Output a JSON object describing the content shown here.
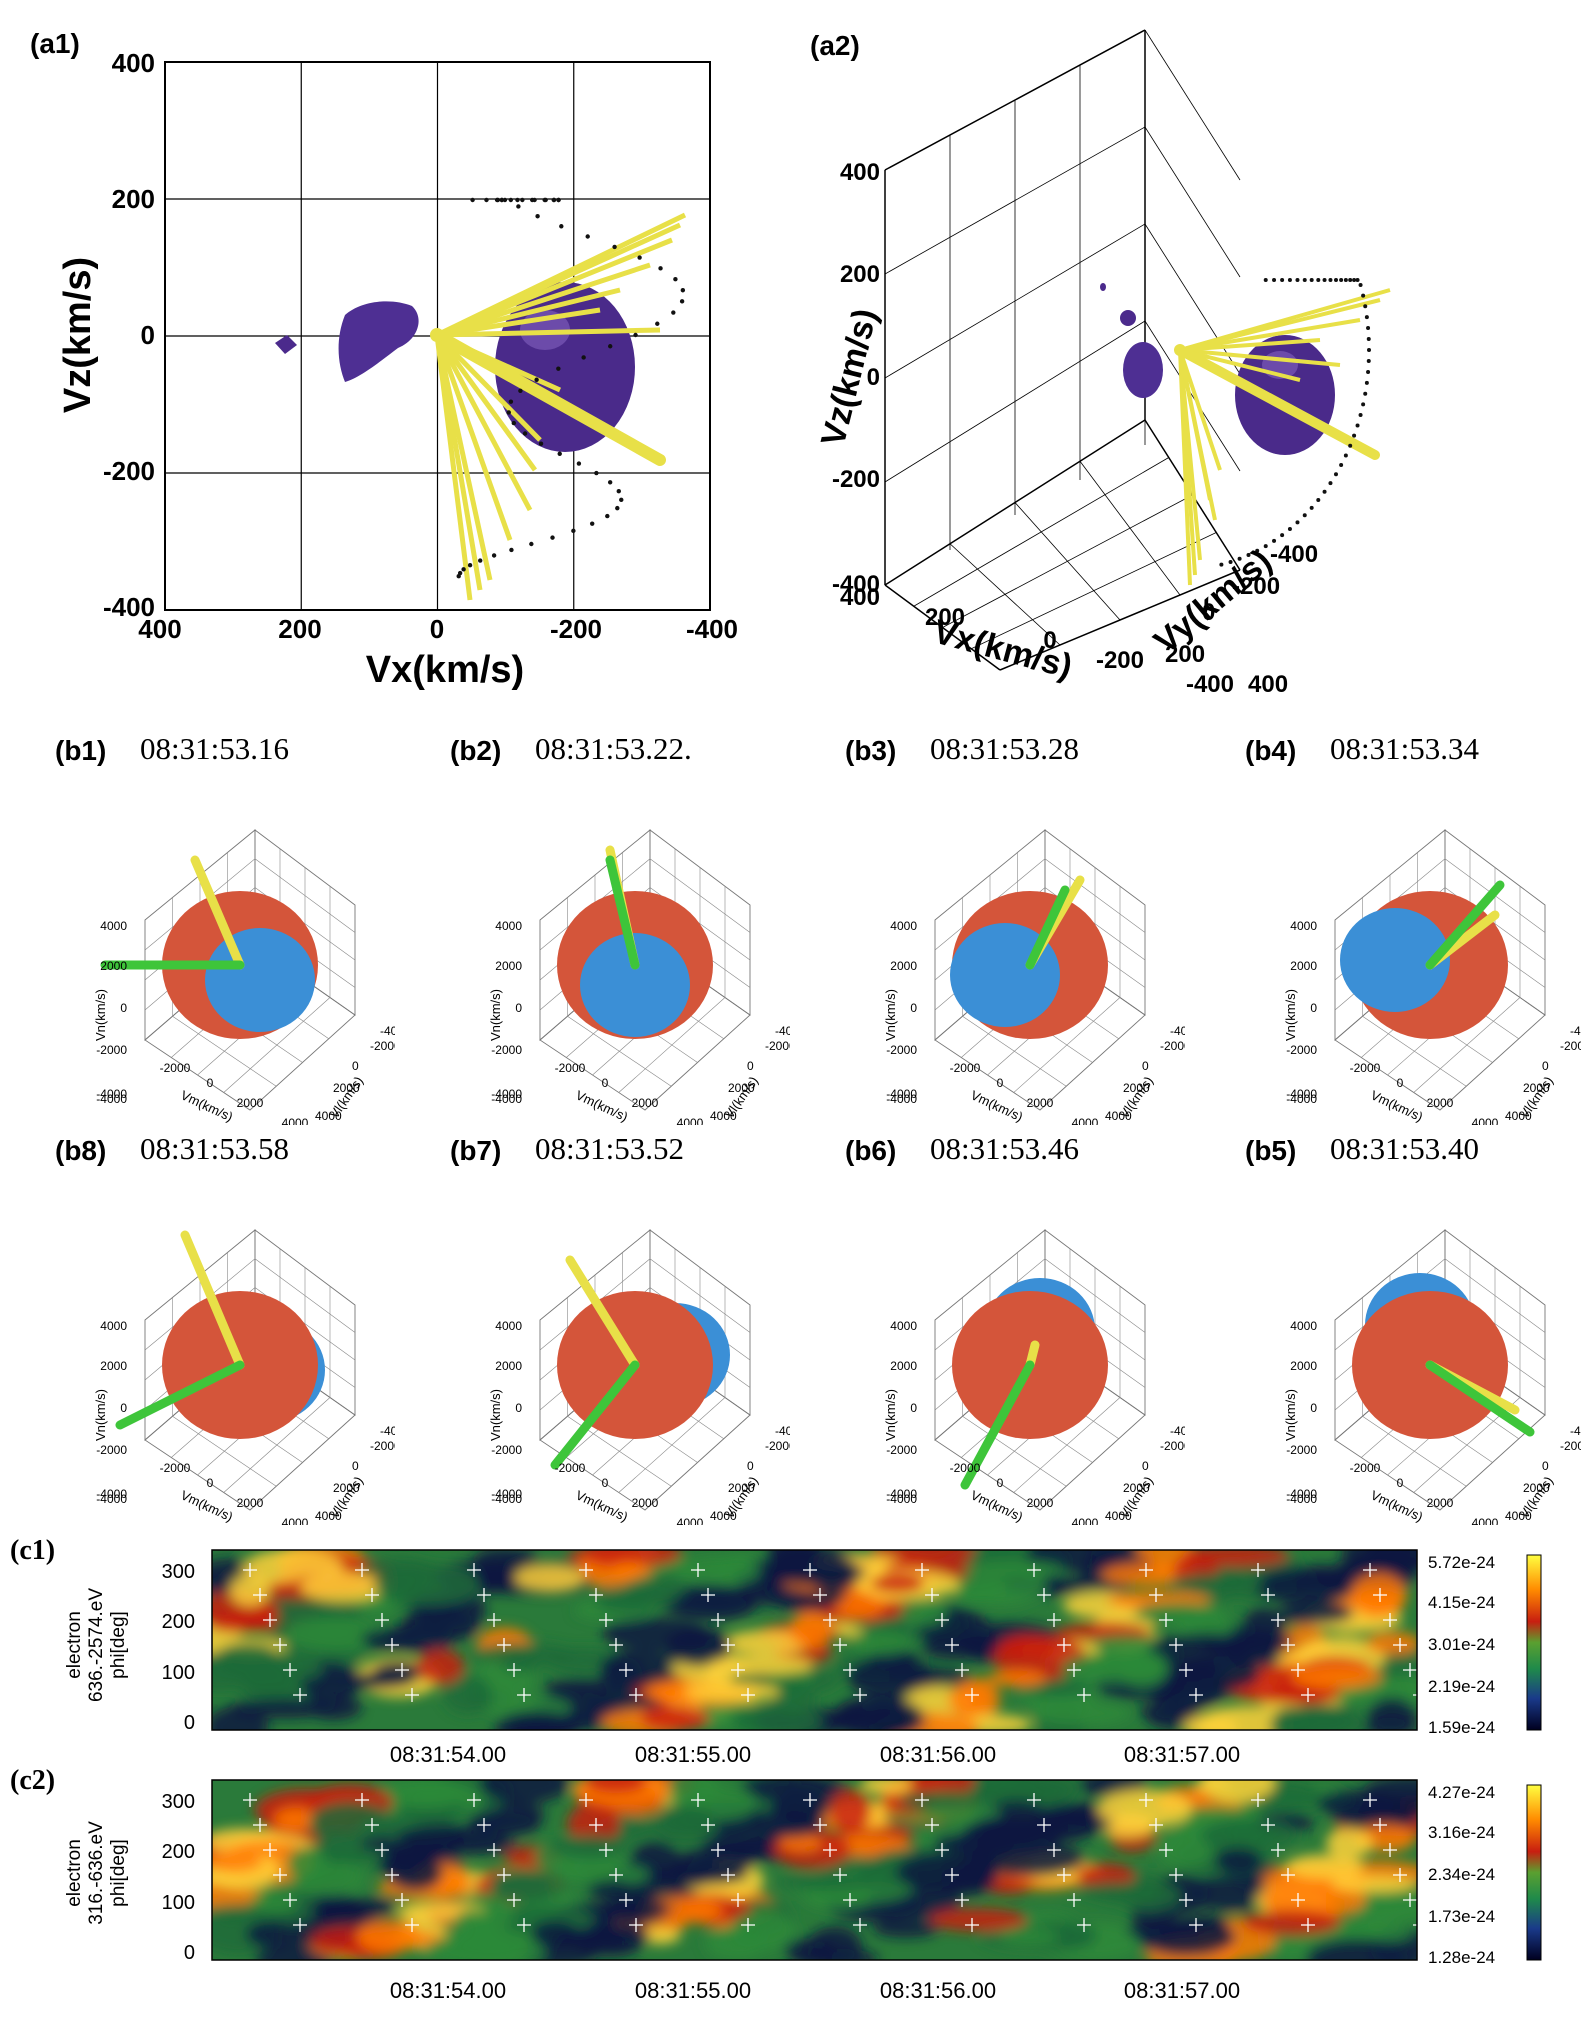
{
  "chart_data": [
    {
      "id": "a1",
      "type": "scatter",
      "title": "(a1)",
      "xlabel": "Vx(km/s)",
      "ylabel": "Vz(km/s)",
      "xlim": [
        400,
        -400
      ],
      "ylim": [
        -400,
        400
      ],
      "xticks": [
        "400",
        "200",
        "0",
        "-200",
        "-400"
      ],
      "yticks": [
        "400",
        "200",
        "0",
        "-200",
        "-400"
      ],
      "description_values": {
        "isosurface_centers": [
          [
            -230,
            0
          ],
          [
            75,
            0
          ],
          [
            220,
            10
          ]
        ]
      }
    },
    {
      "id": "a2",
      "type": "scatter",
      "title": "(a2)",
      "xlabel": "Vx(km/s)",
      "ylabel": "Vz(km/s)",
      "zlabel": "Vy(km/s)",
      "z_ticks": [
        "400",
        "200",
        "0",
        "-200",
        "-400"
      ],
      "x_ticks": [
        "400",
        "200",
        "0",
        "-200",
        "-400"
      ],
      "y_ticks": [
        "-400",
        "-200",
        "0",
        "200",
        "400"
      ]
    },
    {
      "id": "b",
      "type": "scatter",
      "panels": [
        {
          "label": "(b1)",
          "time": "08:31:53.16"
        },
        {
          "label": "(b2)",
          "time": "08:31:53.22."
        },
        {
          "label": "(b3)",
          "time": "08:31:53.28"
        },
        {
          "label": "(b4)",
          "time": "08:31:53.34"
        },
        {
          "label": "(b8)",
          "time": "08:31:53.58"
        },
        {
          "label": "(b7)",
          "time": "08:31:53.52"
        },
        {
          "label": "(b6)",
          "time": "08:31:53.46"
        },
        {
          "label": "(b5)",
          "time": "08:31:53.40"
        }
      ],
      "zlabel": "Vn(km/s)",
      "xlabel": "Vm(km/s)",
      "ylabel": "Vl(km/s)",
      "z_ticks": [
        "4000",
        "2000",
        "0",
        "-2000",
        "-4000"
      ],
      "m_ticks": [
        "-2000",
        "0",
        "2000",
        "4000"
      ],
      "l_ticks": [
        "-4000",
        "-2000",
        "0",
        "2000",
        "4000"
      ]
    },
    {
      "id": "c1",
      "type": "heatmap",
      "title": "(c1)",
      "ylabel": [
        "electron",
        "636.-2574.eV",
        "phi[deg]"
      ],
      "yticks": [
        "300",
        "200",
        "100",
        "0"
      ],
      "ylim": [
        0,
        360
      ],
      "xticks": [
        "08:31:54.00",
        "08:31:55.00",
        "08:31:56.00",
        "08:31:57.00"
      ],
      "colorbar": [
        "5.72e-24",
        "4.15e-24",
        "3.01e-24",
        "2.19e-24",
        "1.59e-24"
      ]
    },
    {
      "id": "c2",
      "type": "heatmap",
      "title": "(c2)",
      "ylabel": [
        "electron",
        "316.-636.eV",
        "phi[deg]"
      ],
      "yticks": [
        "300",
        "200",
        "100",
        "0"
      ],
      "ylim": [
        0,
        360
      ],
      "xticks": [
        "08:31:54.00",
        "08:31:55.00",
        "08:31:56.00",
        "08:31:57.00"
      ],
      "colorbar": [
        "4.27e-24",
        "3.16e-24",
        "2.34e-24",
        "1.73e-24",
        "1.28e-24"
      ]
    }
  ],
  "colors": {
    "purple": "#4b2a8c",
    "yellow": "#e8e048",
    "red": "#d4553a",
    "blue": "#3b8fd6",
    "green": "#3ec53a"
  }
}
